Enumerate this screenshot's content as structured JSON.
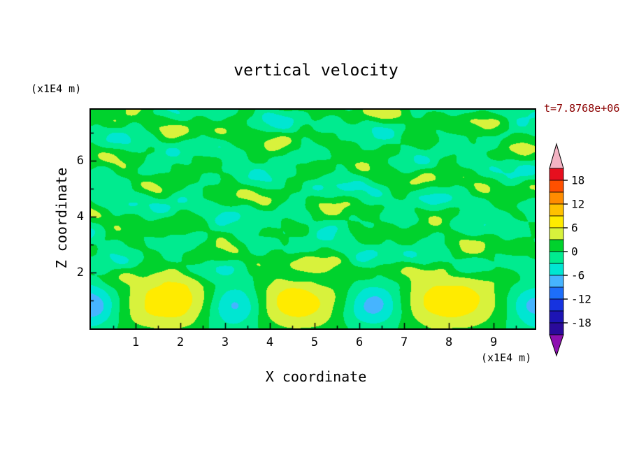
{
  "title": "vertical velocity",
  "time_label": "t=7.8768e+06",
  "colors": {
    "time_label": "#8b0000",
    "background": "#ffffff",
    "frame": "#000000"
  },
  "axes": {
    "x": {
      "label": "X coordinate",
      "unit": "(x1E4 m)",
      "ticks": [
        1,
        2,
        3,
        4,
        5,
        6,
        7,
        8,
        9
      ],
      "range": [
        0,
        9.92
      ]
    },
    "y": {
      "label": "Z coordinate",
      "unit": "(x1E4 m)",
      "ticks": [
        2,
        4,
        6
      ],
      "minor_ticks": [
        1,
        3,
        5,
        7
      ],
      "range": [
        0,
        7.83
      ]
    }
  },
  "colorbar": {
    "tick_labels": [
      "18",
      "12",
      "6",
      "0",
      "-6",
      "-12",
      "-18"
    ],
    "tick_levels": [
      18,
      12,
      6,
      0,
      -6,
      -12,
      -18
    ],
    "level_max": 21,
    "level_min": -21,
    "level_step": 3,
    "segment_colors_top_to_bottom": [
      "#e60f1e",
      "#ff5000",
      "#ff8c00",
      "#ffc100",
      "#ffeb00",
      "#d8f23c",
      "#00d22d",
      "#00eb8f",
      "#00e6d2",
      "#46b4ff",
      "#1d6efa",
      "#1633e0",
      "#1d14b4",
      "#2a0a9b"
    ],
    "over_color": "#f3b3c3",
    "under_color": "#8d10b0"
  },
  "chart_data": {
    "type": "heatmap",
    "title": "vertical velocity",
    "xlabel": "X coordinate (x1E4 m)",
    "ylabel": "Z coordinate (x1E4 m)",
    "time_annotation": "t=7.8768e+06",
    "x_range": [
      0,
      9.92
    ],
    "z_range": [
      0,
      7.83
    ],
    "contour_interval": 3,
    "colorbar_range": [
      -21,
      21
    ],
    "field_description": "Filled contour plot of vertical velocity: convective cells hug the lower boundary (updraft maxima ~ +9 alternating with downdraft minima ~ -9 near z~0.9), while the rest of the domain is filled with weak mottled fluctuations |w| < 3 (bands -3..0 spring green and 0..3 green)",
    "cells": [
      {
        "x": 1.8,
        "z": 0.95,
        "peak": 8.8,
        "sx": 0.85,
        "sz": 0.75,
        "kind": "updraft"
      },
      {
        "x": 4.55,
        "z": 0.95,
        "peak": 8.4,
        "sx": 0.8,
        "sz": 0.72,
        "kind": "updraft"
      },
      {
        "x": 8.0,
        "z": 0.95,
        "peak": 8.8,
        "sx": 0.85,
        "sz": 0.75,
        "kind": "updraft"
      },
      {
        "x": 0.02,
        "z": 0.85,
        "peak": -8.5,
        "sx": 0.42,
        "sz": 0.55,
        "kind": "downdraft"
      },
      {
        "x": 3.2,
        "z": 0.85,
        "peak": -9.8,
        "sx": 0.48,
        "sz": 0.6,
        "kind": "downdraft"
      },
      {
        "x": 6.35,
        "z": 0.85,
        "peak": -8.5,
        "sx": 0.45,
        "sz": 0.55,
        "kind": "downdraft"
      },
      {
        "x": 9.9,
        "z": 0.8,
        "peak": -7.5,
        "sx": 0.4,
        "sz": 0.5,
        "kind": "downdraft"
      }
    ],
    "background_band": [
      -3,
      0
    ],
    "mottle_band": [
      0,
      3
    ]
  }
}
